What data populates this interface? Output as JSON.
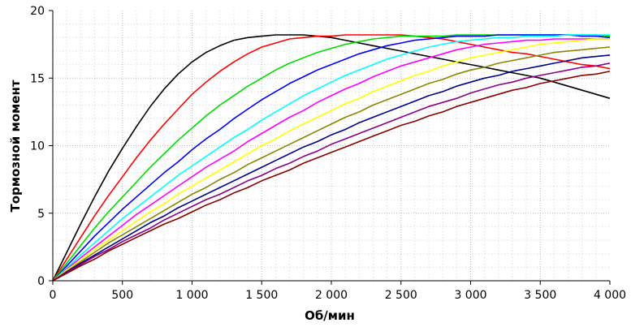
{
  "chart_data": {
    "type": "line",
    "title": "",
    "xlabel": "Об/мин",
    "ylabel": "Тормозной момент",
    "xlim": [
      0,
      4000
    ],
    "ylim": [
      0,
      20
    ],
    "x_ticks": [
      0,
      500,
      1000,
      1500,
      2000,
      2500,
      3000,
      3500,
      4000
    ],
    "x_tick_labels": [
      "0",
      "500",
      "1 000",
      "1 500",
      "2 000",
      "2 500",
      "3 000",
      "3 500",
      "4 000"
    ],
    "y_ticks": [
      0,
      5,
      10,
      15,
      20
    ],
    "y_tick_labels": [
      "0",
      "5",
      "10",
      "15",
      "20"
    ],
    "grid": true,
    "x": [
      0,
      100,
      200,
      300,
      400,
      500,
      600,
      700,
      800,
      900,
      1000,
      1100,
      1200,
      1300,
      1400,
      1500,
      1600,
      1700,
      1800,
      1900,
      2000,
      2100,
      2200,
      2300,
      2400,
      2500,
      2600,
      2700,
      2800,
      2900,
      3000,
      3100,
      3200,
      3300,
      3400,
      3500,
      3600,
      3700,
      3800,
      3900,
      4000
    ],
    "series": [
      {
        "name": "black",
        "color": "#000000",
        "values": [
          0,
          2.1,
          4.2,
          6.2,
          8.1,
          9.8,
          11.4,
          12.9,
          14.2,
          15.3,
          16.2,
          16.9,
          17.4,
          17.8,
          18.0,
          18.1,
          18.2,
          18.2,
          18.2,
          18.1,
          18.0,
          17.8,
          17.6,
          17.4,
          17.2,
          17.0,
          16.8,
          16.6,
          16.4,
          16.2,
          16.0,
          15.8,
          15.6,
          15.4,
          15.2,
          15.0,
          14.7,
          14.4,
          14.1,
          13.8,
          13.5
        ]
      },
      {
        "name": "red",
        "color": "#ff0000",
        "values": [
          0,
          1.6,
          3.2,
          4.8,
          6.3,
          7.7,
          9.1,
          10.4,
          11.6,
          12.7,
          13.8,
          14.7,
          15.5,
          16.2,
          16.8,
          17.3,
          17.6,
          17.9,
          18.0,
          18.1,
          18.1,
          18.2,
          18.2,
          18.2,
          18.2,
          18.2,
          18.1,
          18.0,
          17.9,
          17.7,
          17.5,
          17.3,
          17.1,
          16.9,
          16.8,
          16.6,
          16.4,
          16.2,
          16.0,
          15.9,
          15.7
        ]
      },
      {
        "name": "green",
        "color": "#00dd00",
        "values": [
          0,
          1.3,
          2.6,
          3.9,
          5.1,
          6.2,
          7.3,
          8.4,
          9.4,
          10.4,
          11.3,
          12.2,
          13.0,
          13.7,
          14.4,
          15.0,
          15.6,
          16.1,
          16.5,
          16.9,
          17.2,
          17.5,
          17.7,
          17.9,
          18.0,
          18.1,
          18.1,
          18.1,
          18.1,
          18.2,
          18.2,
          18.2,
          18.2,
          18.2,
          18.2,
          18.2,
          18.2,
          18.2,
          18.2,
          18.2,
          18.1
        ]
      },
      {
        "name": "blue",
        "color": "#0000ff",
        "values": [
          0,
          1.1,
          2.2,
          3.3,
          4.3,
          5.3,
          6.2,
          7.1,
          8.0,
          8.8,
          9.7,
          10.5,
          11.2,
          12.0,
          12.7,
          13.4,
          14.0,
          14.6,
          15.1,
          15.6,
          16.0,
          16.4,
          16.8,
          17.1,
          17.4,
          17.6,
          17.8,
          17.9,
          18.0,
          18.1,
          18.1,
          18.1,
          18.2,
          18.2,
          18.2,
          18.2,
          18.2,
          18.2,
          18.1,
          18.1,
          18.0
        ]
      },
      {
        "name": "cyan",
        "color": "#00ffff",
        "values": [
          0,
          0.95,
          1.9,
          2.8,
          3.7,
          4.6,
          5.4,
          6.2,
          7.0,
          7.8,
          8.5,
          9.2,
          9.9,
          10.6,
          11.2,
          11.9,
          12.5,
          13.1,
          13.7,
          14.2,
          14.7,
          15.2,
          15.6,
          16.0,
          16.4,
          16.7,
          17.0,
          17.3,
          17.5,
          17.7,
          17.8,
          17.9,
          18.0,
          18.0,
          18.1,
          18.1,
          18.1,
          18.2,
          18.2,
          18.2,
          18.2
        ]
      },
      {
        "name": "magenta",
        "color": "#ff00ff",
        "values": [
          0,
          0.85,
          1.7,
          2.5,
          3.3,
          4.1,
          4.9,
          5.6,
          6.3,
          7.0,
          7.7,
          8.4,
          9.0,
          9.6,
          10.3,
          10.9,
          11.5,
          12.1,
          12.6,
          13.2,
          13.7,
          14.2,
          14.6,
          15.1,
          15.5,
          15.9,
          16.2,
          16.5,
          16.8,
          17.1,
          17.3,
          17.5,
          17.6,
          17.7,
          17.8,
          17.8,
          17.9,
          17.9,
          17.9,
          17.9,
          17.9
        ]
      },
      {
        "name": "yellow",
        "color": "#ffff00",
        "values": [
          0,
          0.8,
          1.5,
          2.3,
          3.0,
          3.7,
          4.4,
          5.1,
          5.7,
          6.4,
          7.0,
          7.6,
          8.2,
          8.8,
          9.4,
          10.0,
          10.5,
          11.1,
          11.6,
          12.1,
          12.6,
          13.1,
          13.5,
          14.0,
          14.4,
          14.8,
          15.2,
          15.5,
          15.9,
          16.2,
          16.5,
          16.7,
          16.9,
          17.1,
          17.3,
          17.5,
          17.6,
          17.7,
          17.8,
          17.9,
          17.9
        ]
      },
      {
        "name": "olive",
        "color": "#888800",
        "values": [
          0,
          0.7,
          1.4,
          2.1,
          2.8,
          3.4,
          4.0,
          4.6,
          5.2,
          5.8,
          6.4,
          6.9,
          7.5,
          8.0,
          8.6,
          9.1,
          9.6,
          10.1,
          10.6,
          11.1,
          11.6,
          12.1,
          12.5,
          13.0,
          13.4,
          13.8,
          14.2,
          14.6,
          14.9,
          15.3,
          15.6,
          15.8,
          16.1,
          16.3,
          16.5,
          16.7,
          16.9,
          17.0,
          17.1,
          17.2,
          17.3
        ]
      },
      {
        "name": "navy",
        "color": "#000088",
        "values": [
          0,
          0.65,
          1.3,
          1.9,
          2.5,
          3.1,
          3.7,
          4.3,
          4.8,
          5.4,
          5.9,
          6.4,
          6.9,
          7.4,
          7.9,
          8.4,
          8.9,
          9.4,
          9.9,
          10.3,
          10.8,
          11.2,
          11.7,
          12.1,
          12.5,
          12.9,
          13.3,
          13.7,
          14.0,
          14.4,
          14.7,
          15.0,
          15.2,
          15.5,
          15.7,
          15.9,
          16.1,
          16.3,
          16.5,
          16.6,
          16.7
        ]
      },
      {
        "name": "purple",
        "color": "#880088",
        "values": [
          0,
          0.6,
          1.2,
          1.8,
          2.3,
          2.9,
          3.4,
          3.9,
          4.5,
          5.0,
          5.5,
          6.0,
          6.4,
          6.9,
          7.4,
          7.8,
          8.3,
          8.7,
          9.2,
          9.6,
          10.1,
          10.5,
          10.9,
          11.3,
          11.7,
          12.1,
          12.5,
          12.9,
          13.2,
          13.5,
          13.9,
          14.2,
          14.5,
          14.7,
          15.0,
          15.2,
          15.4,
          15.6,
          15.8,
          15.9,
          16.1
        ]
      },
      {
        "name": "maroon",
        "color": "#880000",
        "values": [
          0,
          0.55,
          1.1,
          1.6,
          2.2,
          2.7,
          3.2,
          3.7,
          4.2,
          4.6,
          5.1,
          5.6,
          6.0,
          6.5,
          6.9,
          7.4,
          7.8,
          8.2,
          8.7,
          9.1,
          9.5,
          9.9,
          10.3,
          10.7,
          11.1,
          11.5,
          11.8,
          12.2,
          12.5,
          12.9,
          13.2,
          13.5,
          13.8,
          14.1,
          14.3,
          14.6,
          14.8,
          15.0,
          15.2,
          15.3,
          15.5
        ]
      }
    ]
  }
}
